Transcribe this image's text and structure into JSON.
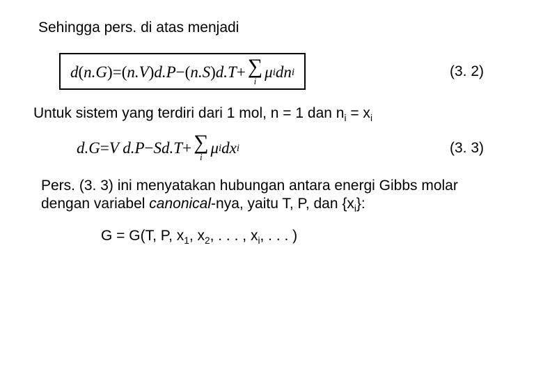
{
  "line1": "Sehingga pers. di atas menjadi",
  "eq32": {
    "parts": {
      "a": "d",
      "b": "(",
      "c": "n.G",
      "d": ")",
      "e": " = ",
      "f": "(",
      "g": "n.V",
      "h": ")",
      "i": "d.P",
      "j": " − ",
      "k": "(",
      "l": "n.S",
      "m": ")",
      "n": "d.T",
      "o": " + ",
      "sigma_sub": "i",
      "mu": "μ",
      "mu_sub": "i",
      "sp": " ",
      "dn": "dn",
      "dn_sub": "i"
    },
    "number": "(3. 2)"
  },
  "line2_a": "Untuk sistem yang terdiri dari 1 mol, n = 1 dan n",
  "line2_sub1": "i",
  "line2_b": " = x",
  "line2_sub2": "i",
  "eq33": {
    "parts": {
      "a": "d.G",
      "b": " = ",
      "c": "V d.P",
      "d": " − ",
      "e": "Sd.T",
      "f": " + ",
      "sigma_sub": "i",
      "mu": "μ",
      "mu_sub": "i",
      "sp": " ",
      "dx": "dx",
      "dx_sub": "i"
    },
    "number": "(3. 3)"
  },
  "para3_a": "Pers. (3. 3) ini menyatakan hubungan antara energi Gibbs molar dengan variabel ",
  "para3_it": "canonical",
  "para3_b": "-nya, yaitu T, P, dan {x",
  "para3_sub": "i",
  "para3_c": "}:",
  "gline_a": "G = G(T, P, x",
  "gline_s1": "1",
  "gline_b": ", x",
  "gline_s2": "2",
  "gline_c": ", . . . , x",
  "gline_si": "i",
  "gline_d": ", . . . )"
}
